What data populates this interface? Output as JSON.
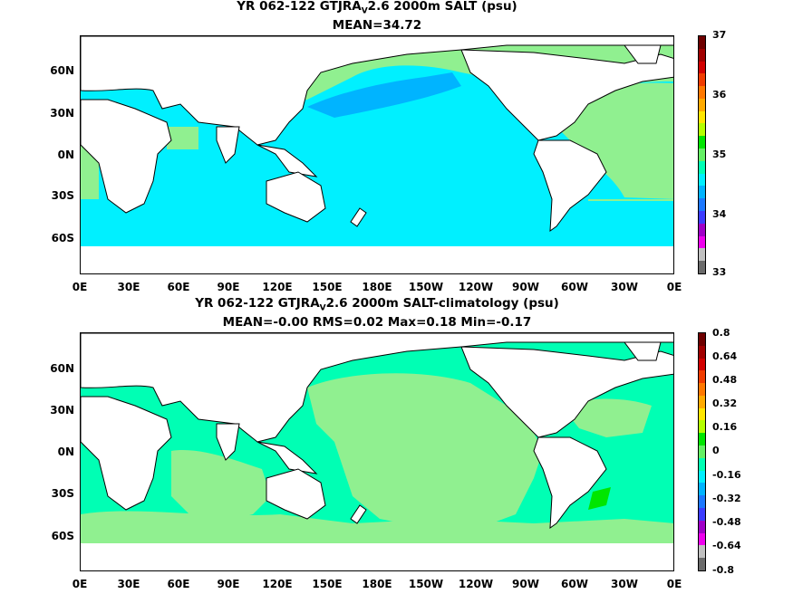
{
  "panel1": {
    "title_pre": "YR 062-122 GTJRA",
    "title_sub": "V",
    "title_post": "2.6 2000m SALT (psu)",
    "subtitle": "MEAN=34.72",
    "lat_labels": [
      "60N",
      "30N",
      "0N",
      "30S",
      "60S"
    ],
    "lon_labels": [
      "0E",
      "30E",
      "60E",
      "90E",
      "120E",
      "150E",
      "180E",
      "150W",
      "120W",
      "90W",
      "60W",
      "30W",
      "0E"
    ],
    "colorbar_labels": [
      "37",
      "36",
      "35",
      "34",
      "33"
    ],
    "colorbar_colors": [
      "#6b6b6b",
      "#c0c0c0",
      "#ee00ee",
      "#a000c8",
      "#3c3cff",
      "#1c78ff",
      "#00b4ff",
      "#00f0ff",
      "#00ffb4",
      "#64f064",
      "#00e600",
      "#b4ff00",
      "#ffe600",
      "#ffaa00",
      "#ff7800",
      "#f03c00",
      "#d20000",
      "#a00000",
      "#6e0000"
    ],
    "palette": {
      "ocean": "#00f0ff",
      "light_green": "#90f090",
      "mint": "#00ffb4",
      "blue": "#00b4ff",
      "land": "#ffffff"
    }
  },
  "panel2": {
    "title_pre": "YR 062-122 GTJRA",
    "title_sub": "V",
    "title_post": "2.6 2000m SALT-climatology (psu)",
    "subtitle": "MEAN=-0.00   RMS=0.02   Max=0.18   Min=-0.17",
    "lat_labels": [
      "60N",
      "30N",
      "0N",
      "30S",
      "60S"
    ],
    "lon_labels": [
      "0E",
      "30E",
      "60E",
      "90E",
      "120E",
      "150E",
      "180E",
      "150W",
      "120W",
      "90W",
      "60W",
      "30W",
      "0E"
    ],
    "colorbar_labels": [
      "0.8",
      "0.64",
      "0.48",
      "0.32",
      "0.16",
      "0",
      "-0.16",
      "-0.32",
      "-0.48",
      "-0.64",
      "-0.8"
    ],
    "colorbar_colors": [
      "#6b6b6b",
      "#c0c0c0",
      "#ee00ee",
      "#a000c8",
      "#3c3cff",
      "#1c78ff",
      "#00b4ff",
      "#00f0ff",
      "#00ffb4",
      "#64f064",
      "#00e600",
      "#b4ff00",
      "#ffe600",
      "#ffaa00",
      "#ff7800",
      "#f03c00",
      "#d20000",
      "#a00000",
      "#6e0000"
    ],
    "palette": {
      "mint": "#00ffb4",
      "light_green": "#90f090",
      "green": "#00e600",
      "land": "#ffffff"
    }
  }
}
